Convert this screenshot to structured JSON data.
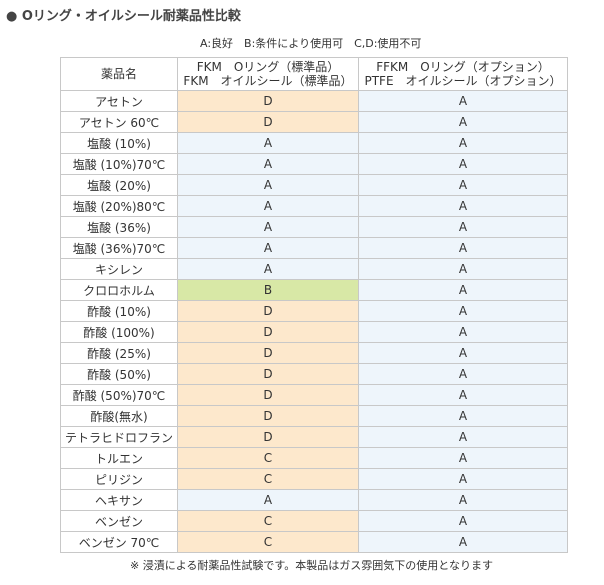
{
  "title": "● Oリング・オイルシール耐薬品性比較",
  "legend": "A:良好　B:条件により使用可　C,D:使用不可",
  "table": {
    "header": [
      "薬品名",
      [
        "FKM　Oリング（標準品）",
        "FKM　オイルシール（標準品）"
      ],
      [
        "FFKM　Oリング（オプション）",
        "PTFE　オイルシール（オプション）"
      ]
    ],
    "grade_colors": {
      "A": "#eef5fb",
      "B": "#d8e8a6",
      "C": "#fde8cc",
      "D": "#fde8cc"
    },
    "rows": [
      [
        "アセトン",
        "D",
        "A"
      ],
      [
        "アセトン 60℃",
        "D",
        "A"
      ],
      [
        "塩酸 (10%)",
        "A",
        "A"
      ],
      [
        "塩酸 (10%)70℃",
        "A",
        "A"
      ],
      [
        "塩酸 (20%)",
        "A",
        "A"
      ],
      [
        "塩酸 (20%)80℃",
        "A",
        "A"
      ],
      [
        "塩酸 (36%)",
        "A",
        "A"
      ],
      [
        "塩酸 (36%)70℃",
        "A",
        "A"
      ],
      [
        "キシレン",
        "A",
        "A"
      ],
      [
        "クロロホルム",
        "B",
        "A"
      ],
      [
        "酢酸 (10%)",
        "D",
        "A"
      ],
      [
        "酢酸 (100%)",
        "D",
        "A"
      ],
      [
        "酢酸 (25%)",
        "D",
        "A"
      ],
      [
        "酢酸 (50%)",
        "D",
        "A"
      ],
      [
        "酢酸 (50%)70℃",
        "D",
        "A"
      ],
      [
        "酢酸(無水)",
        "D",
        "A"
      ],
      [
        "テトラヒドロフラン",
        "D",
        "A"
      ],
      [
        "トルエン",
        "C",
        "A"
      ],
      [
        "ピリジン",
        "C",
        "A"
      ],
      [
        "ヘキサン",
        "A",
        "A"
      ],
      [
        "ベンゼン",
        "C",
        "A"
      ],
      [
        "ベンゼン 70℃",
        "C",
        "A"
      ]
    ]
  },
  "note": "※ 浸漬による耐薬品性試験です。本製品はガス雰囲気下の使用となります"
}
